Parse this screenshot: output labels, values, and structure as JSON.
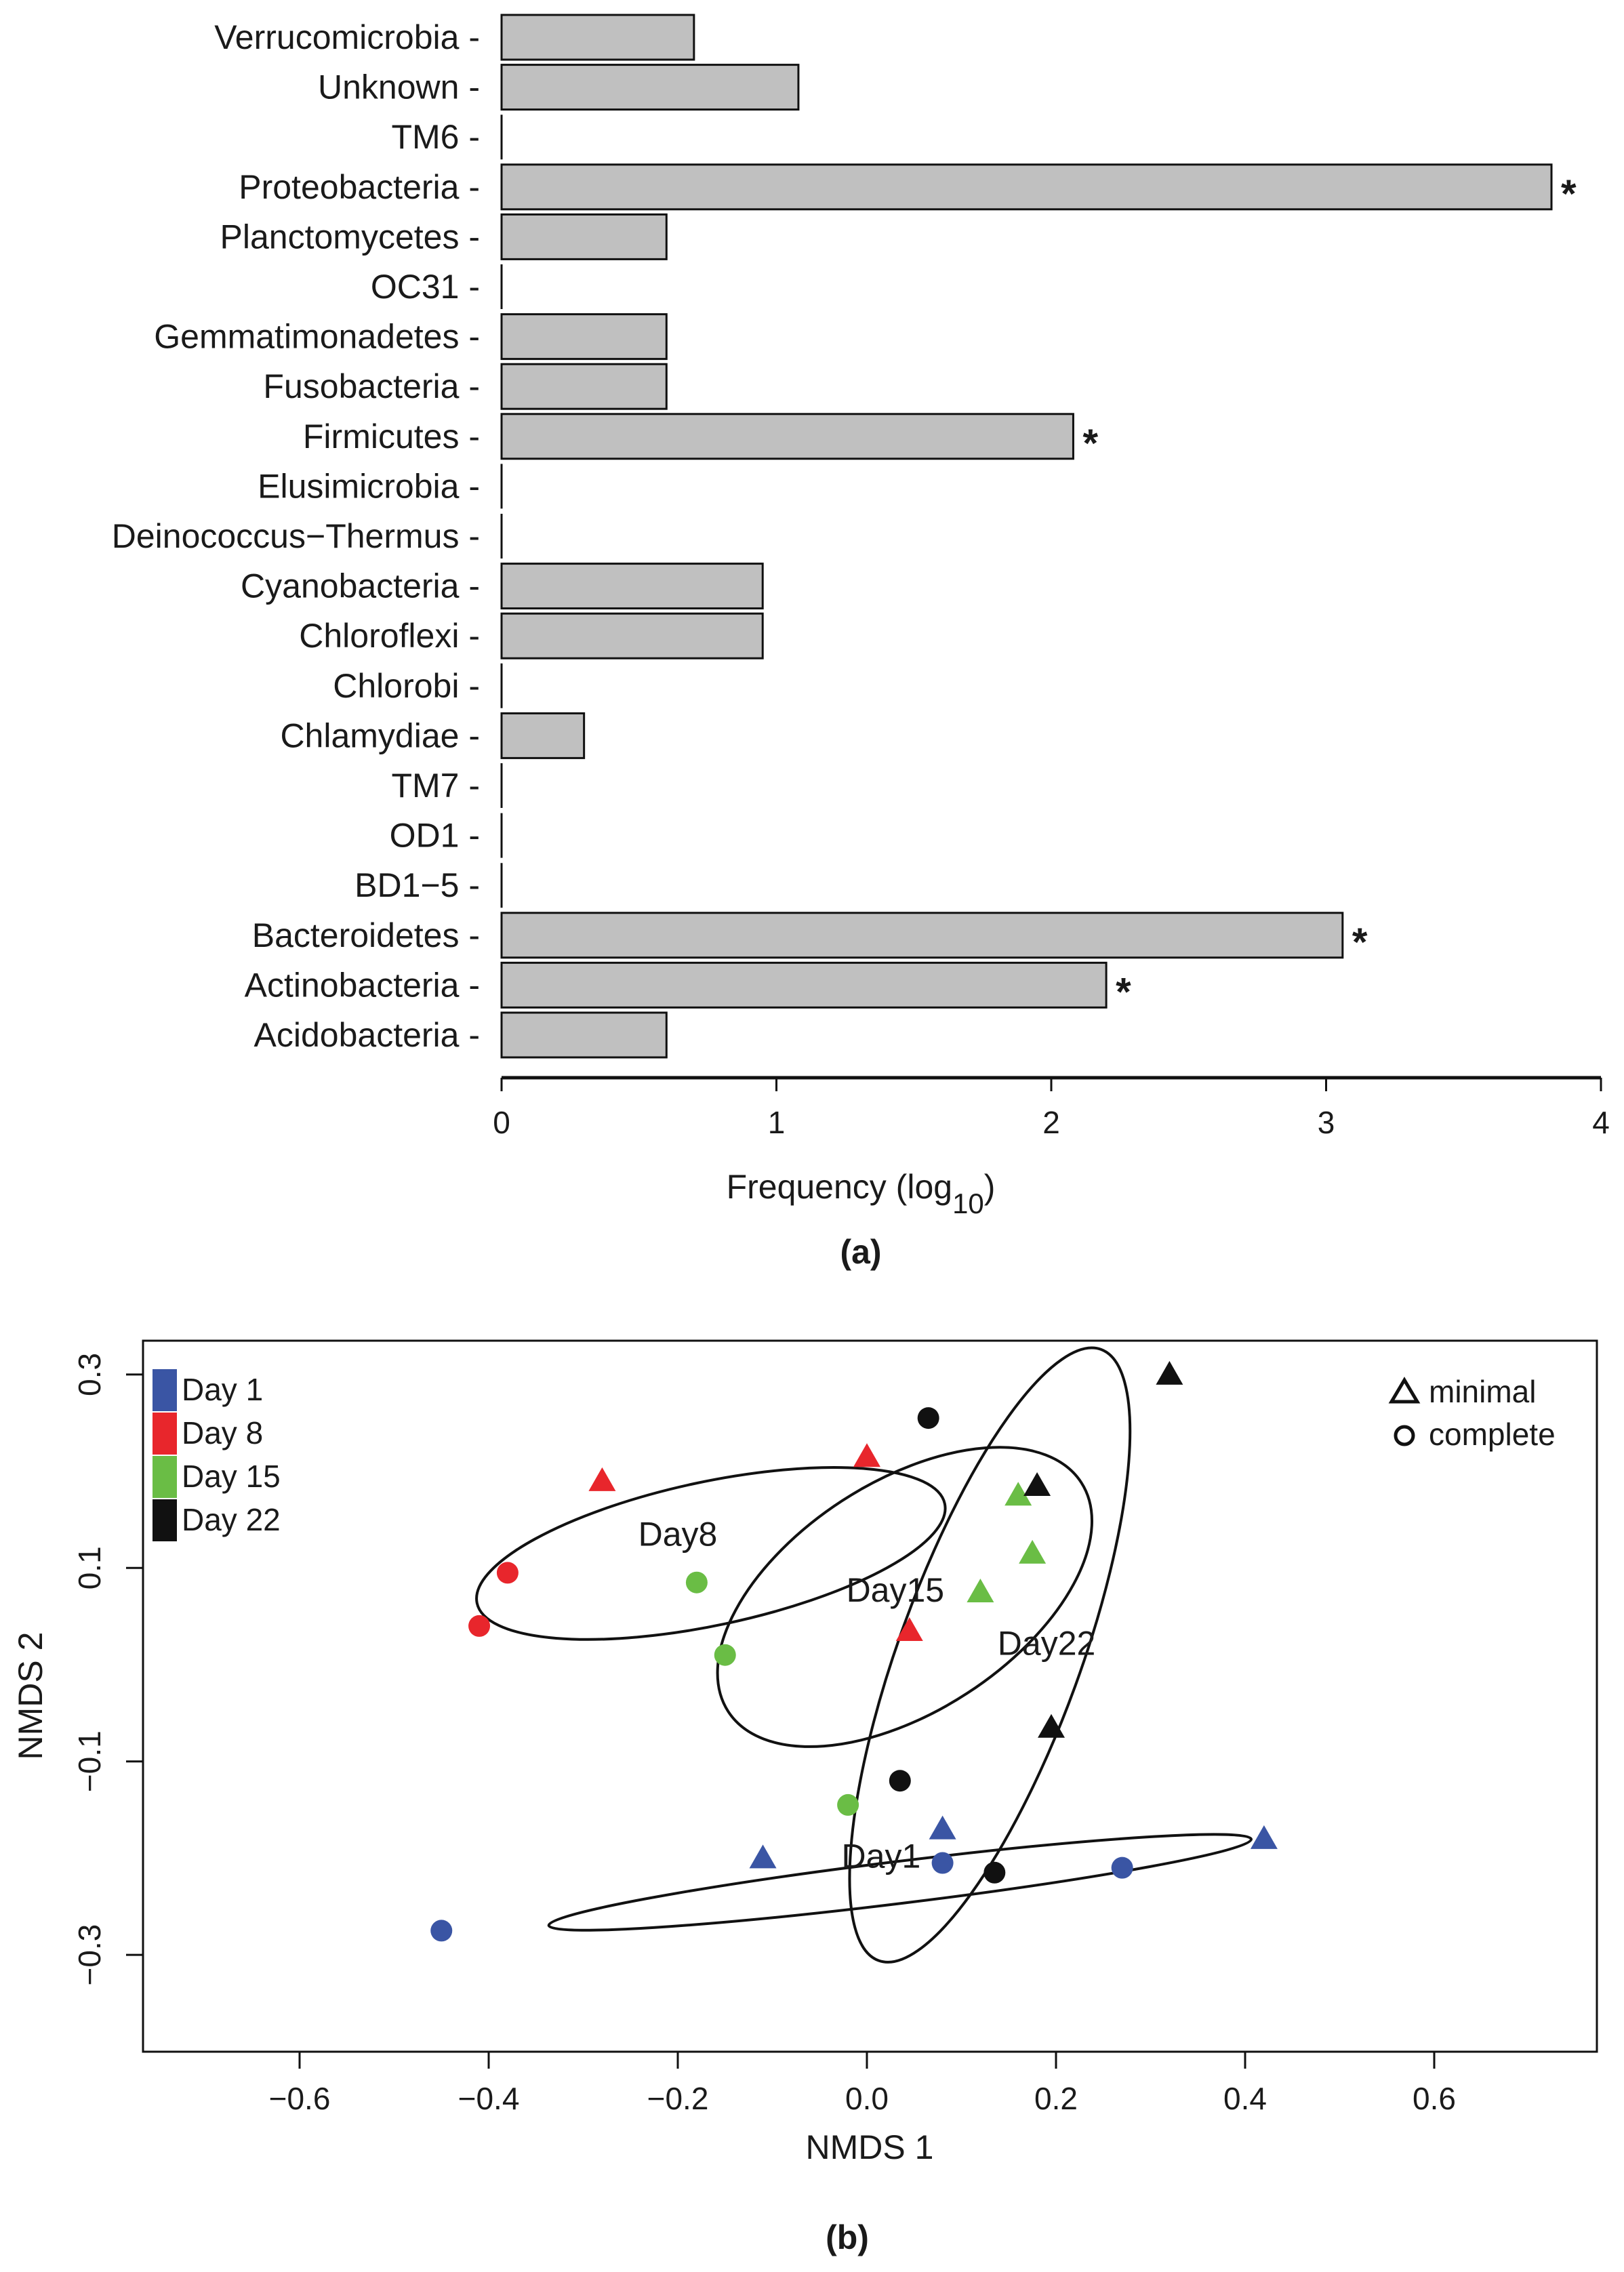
{
  "chart_data": [
    {
      "type": "bar",
      "orientation": "horizontal",
      "categories": [
        "Verrucomicrobia",
        "Unknown",
        "TM6",
        "Proteobacteria",
        "Planctomycetes",
        "OC31",
        "Gemmatimonadetes",
        "Fusobacteria",
        "Firmicutes",
        "Elusimicrobia",
        "Deinococcus−Thermus",
        "Cyanobacteria",
        "Chloroflexi",
        "Chlorobi",
        "Chlamydiae",
        "TM7",
        "OD1",
        "BD1−5",
        "Bacteroidetes",
        "Actinobacteria",
        "Acidobacteria"
      ],
      "values": [
        0.7,
        1.08,
        0.0,
        3.82,
        0.6,
        0.0,
        0.6,
        0.6,
        2.08,
        0.0,
        0.0,
        0.95,
        0.95,
        0.0,
        0.3,
        0.0,
        0.0,
        0.0,
        3.06,
        2.2,
        0.6
      ],
      "significant": [
        "",
        "",
        "",
        "*",
        "",
        "",
        "",
        "",
        "*",
        "",
        "",
        "",
        "",
        "",
        "",
        "",
        "",
        "",
        "*",
        "*",
        ""
      ],
      "xlabel": "Frequency (log",
      "xlabel_sub": "10",
      "xlabel_close": ")",
      "xlim": [
        0,
        4
      ],
      "xticks": [
        "0",
        "1",
        "2",
        "3",
        "4"
      ],
      "panel_label": "(a)",
      "bar_color": "#c0c0c0"
    },
    {
      "type": "scatter",
      "xlabel": "NMDS 1",
      "ylabel": "NMDS 2",
      "xlim": [
        -0.75,
        0.75
      ],
      "ylim": [
        -0.31,
        0.42
      ],
      "xticks": [
        "−0.6",
        "−0.4",
        "−0.2",
        "0.0",
        "0.2",
        "0.4",
        "0.6"
      ],
      "yticks": [
        "−0.3",
        "−0.1",
        "0.1",
        "0.3"
      ],
      "panel_label": "(b)",
      "legend_groups": [
        {
          "label": "Day 1",
          "color": "#3a55a4"
        },
        {
          "label": "Day 8",
          "color": "#e8262c"
        },
        {
          "label": "Day 15",
          "color": "#6abd45"
        },
        {
          "label": "Day 22",
          "color": "#111111"
        }
      ],
      "legend_shapes": [
        {
          "label": "minimal",
          "shape": "triangle"
        },
        {
          "label": "complete",
          "shape": "circle"
        }
      ],
      "points": [
        {
          "x": -0.45,
          "y": -0.275,
          "shape": "circle",
          "group": 0
        },
        {
          "x": -0.11,
          "y": -0.2,
          "shape": "triangle",
          "group": 0
        },
        {
          "x": 0.08,
          "y": -0.205,
          "shape": "circle",
          "group": 0
        },
        {
          "x": 0.08,
          "y": -0.17,
          "shape": "triangle",
          "group": 0
        },
        {
          "x": 0.27,
          "y": -0.21,
          "shape": "circle",
          "group": 0
        },
        {
          "x": 0.42,
          "y": -0.18,
          "shape": "triangle",
          "group": 0
        },
        {
          "x": -0.38,
          "y": 0.095,
          "shape": "circle",
          "group": 1
        },
        {
          "x": -0.41,
          "y": 0.04,
          "shape": "circle",
          "group": 1
        },
        {
          "x": -0.28,
          "y": 0.19,
          "shape": "triangle",
          "group": 1
        },
        {
          "x": 0.0,
          "y": 0.215,
          "shape": "triangle",
          "group": 1
        },
        {
          "x": 0.045,
          "y": 0.035,
          "shape": "triangle",
          "group": 1
        },
        {
          "x": -0.18,
          "y": 0.085,
          "shape": "circle",
          "group": 2
        },
        {
          "x": -0.15,
          "y": 0.01,
          "shape": "circle",
          "group": 2
        },
        {
          "x": -0.02,
          "y": -0.145,
          "shape": "circle",
          "group": 2
        },
        {
          "x": 0.12,
          "y": 0.075,
          "shape": "triangle",
          "group": 2
        },
        {
          "x": 0.16,
          "y": 0.175,
          "shape": "triangle",
          "group": 2
        },
        {
          "x": 0.175,
          "y": 0.115,
          "shape": "triangle",
          "group": 2
        },
        {
          "x": 0.065,
          "y": 0.255,
          "shape": "circle",
          "group": 3
        },
        {
          "x": 0.18,
          "y": 0.185,
          "shape": "triangle",
          "group": 3
        },
        {
          "x": 0.32,
          "y": 0.3,
          "shape": "triangle",
          "group": 3
        },
        {
          "x": 0.195,
          "y": -0.065,
          "shape": "triangle",
          "group": 3
        },
        {
          "x": 0.035,
          "y": -0.12,
          "shape": "circle",
          "group": 3
        },
        {
          "x": 0.135,
          "y": -0.215,
          "shape": "circle",
          "group": 3
        }
      ],
      "ellipse_labels": [
        {
          "text": "Day8",
          "x": -0.2,
          "y": 0.123
        },
        {
          "text": "Day15",
          "x": 0.03,
          "y": 0.065
        },
        {
          "text": "Day22",
          "x": 0.19,
          "y": 0.01
        },
        {
          "text": "Day1",
          "x": 0.015,
          "y": -0.21
        }
      ],
      "ellipses": [
        {
          "label": "Day8",
          "cx": -0.165,
          "cy": 0.115,
          "rx": 0.25,
          "ry": 0.075,
          "angle_deg": 12
        },
        {
          "label": "Day15",
          "cx": 0.04,
          "cy": 0.07,
          "rx": 0.22,
          "ry": 0.12,
          "angle_deg": 33
        },
        {
          "label": "Day22",
          "cx": 0.13,
          "cy": 0.01,
          "rx": 0.34,
          "ry": 0.095,
          "angle_deg": 70
        },
        {
          "label": "Day1",
          "cx": 0.035,
          "cy": -0.225,
          "rx": 0.37,
          "ry": 0.022,
          "angle_deg": 7
        }
      ]
    }
  ]
}
